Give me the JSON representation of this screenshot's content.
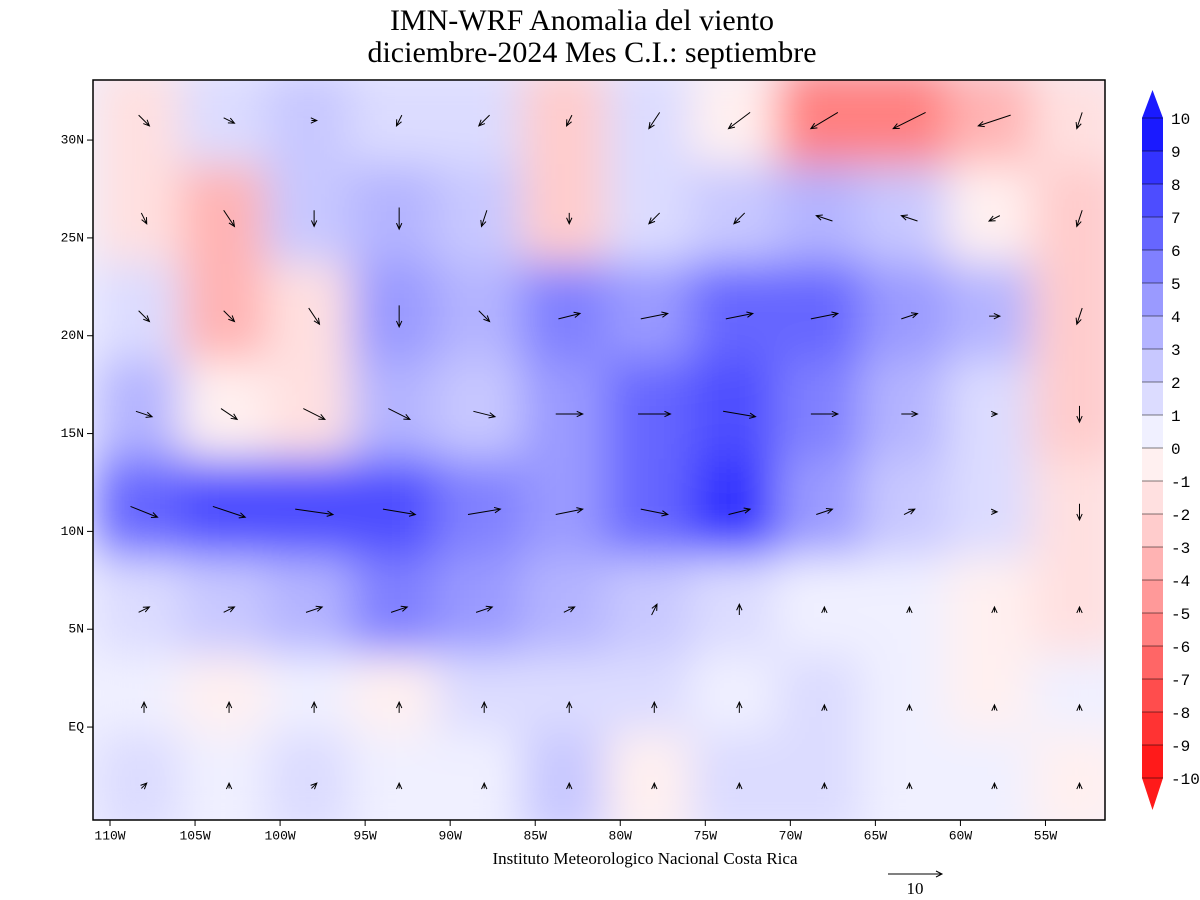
{
  "chart_data": {
    "type": "vector-map",
    "title": [
      "IMN-WRF Anomalia del viento",
      "diciembre-2024 Mes C.I.: septiembre"
    ],
    "xlabel": "Instituto Meteorologico Nacional Costa Rica",
    "xlim": [
      -111,
      -51.5
    ],
    "ylim": [
      -4.75,
      33.07
    ],
    "xticks": [
      {
        "value": -110,
        "label": "110W"
      },
      {
        "value": -105,
        "label": "105W"
      },
      {
        "value": -100,
        "label": "100W"
      },
      {
        "value": -95,
        "label": "95W"
      },
      {
        "value": -90,
        "label": "90W"
      },
      {
        "value": -85,
        "label": "85W"
      },
      {
        "value": -80,
        "label": "80W"
      },
      {
        "value": -75,
        "label": "75W"
      },
      {
        "value": -70,
        "label": "70W"
      },
      {
        "value": -65,
        "label": "65W"
      },
      {
        "value": -60,
        "label": "60W"
      },
      {
        "value": -55,
        "label": "55W"
      }
    ],
    "yticks": [
      {
        "value": 30,
        "label": "30N"
      },
      {
        "value": 25,
        "label": "25N"
      },
      {
        "value": 20,
        "label": "20N"
      },
      {
        "value": 15,
        "label": "15N"
      },
      {
        "value": 10,
        "label": "10N"
      },
      {
        "value": 5,
        "label": "5N"
      },
      {
        "value": 0,
        "label": "EQ"
      }
    ],
    "x": [
      -108,
      -103,
      -98,
      -93,
      -88,
      -83,
      -78,
      -73,
      -68,
      -63,
      -58,
      -53
    ],
    "y": [
      31,
      26,
      21,
      16,
      11,
      6,
      1,
      -3
    ],
    "anomaly": [
      [
        -2,
        1,
        2,
        1,
        1,
        -3,
        1,
        -1,
        -6,
        -6,
        -4,
        -2
      ],
      [
        -2,
        -4,
        2,
        3,
        2,
        -3,
        1,
        2,
        3,
        2,
        -1,
        -3
      ],
      [
        1,
        -4,
        -2,
        4,
        3,
        5,
        4,
        6,
        6,
        4,
        3,
        -3
      ],
      [
        3,
        -1,
        -2,
        3,
        2,
        4,
        6,
        7,
        5,
        3,
        1,
        -3
      ],
      [
        6,
        7,
        7,
        7,
        5,
        4,
        6,
        8,
        4,
        2,
        1,
        -2
      ],
      [
        1,
        2,
        3,
        5,
        4,
        3,
        2,
        1,
        0,
        0,
        -1,
        -2
      ],
      [
        0,
        -1,
        0,
        -1,
        1,
        1,
        1,
        0,
        1,
        0,
        -1,
        0
      ],
      [
        1,
        0,
        1,
        0,
        0,
        2,
        -1,
        1,
        1,
        0,
        0,
        -1
      ]
    ],
    "u": [
      [
        2,
        2,
        1,
        -1,
        -2,
        -1,
        -2,
        -4,
        -5,
        -6,
        -6,
        -1
      ],
      [
        1,
        2,
        0,
        0,
        -1,
        0,
        -2,
        -2,
        -3,
        -3,
        -2,
        -1
      ],
      [
        2,
        2,
        2,
        0,
        2,
        4,
        5,
        5,
        5,
        3,
        2,
        -1
      ],
      [
        3,
        3,
        4,
        4,
        4,
        5,
        6,
        6,
        5,
        3,
        1,
        0
      ],
      [
        5,
        6,
        7,
        6,
        6,
        5,
        5,
        4,
        3,
        2,
        1,
        0
      ],
      [
        2,
        2,
        3,
        3,
        3,
        2,
        1,
        0,
        0,
        0,
        0,
        0
      ],
      [
        0,
        0,
        0,
        0,
        0,
        0,
        0,
        0,
        0,
        0,
        0,
        0
      ],
      [
        1,
        0,
        1,
        0,
        0,
        0,
        0,
        0,
        0,
        0,
        0,
        0
      ]
    ],
    "v": [
      [
        -2,
        -1,
        0,
        -2,
        -2,
        -2,
        -3,
        -3,
        -3,
        -3,
        -2,
        -3
      ],
      [
        -2,
        -3,
        -3,
        -4,
        -3,
        -2,
        -2,
        -2,
        1,
        1,
        -1,
        -3
      ],
      [
        -2,
        -2,
        -3,
        -4,
        -2,
        1,
        1,
        1,
        1,
        1,
        0,
        -3
      ],
      [
        -1,
        -2,
        -2,
        -2,
        -1,
        0,
        0,
        -1,
        0,
        0,
        0,
        -3
      ],
      [
        -2,
        -2,
        -1,
        -1,
        1,
        1,
        -1,
        1,
        1,
        1,
        0,
        -3
      ],
      [
        1,
        1,
        1,
        1,
        1,
        1,
        2,
        2,
        1,
        1,
        1,
        1
      ],
      [
        2,
        2,
        2,
        2,
        2,
        2,
        2,
        2,
        1,
        1,
        1,
        1
      ],
      [
        1,
        1,
        1,
        1,
        1,
        1,
        1,
        1,
        1,
        1,
        1,
        1
      ]
    ],
    "reference_vector": 10,
    "colorbar": {
      "ticks": [
        10,
        9,
        8,
        7,
        6,
        5,
        4,
        3,
        2,
        1,
        0,
        -1,
        -2,
        -3,
        -4,
        -5,
        -6,
        -7,
        -8,
        -9,
        -10
      ],
      "colors": [
        "#ff1a1a",
        "#ff3333",
        "#ff4d4d",
        "#ff6666",
        "#ff8080",
        "#ff9999",
        "#ffb3b3",
        "#ffcccc",
        "#ffe0e0",
        "#fff0f0",
        "#f0f0ff",
        "#dcdcff",
        "#c8c8ff",
        "#b4b4ff",
        "#9a9aff",
        "#8080ff",
        "#6666ff",
        "#4d4dff",
        "#3333ff",
        "#1a1aff"
      ]
    }
  }
}
